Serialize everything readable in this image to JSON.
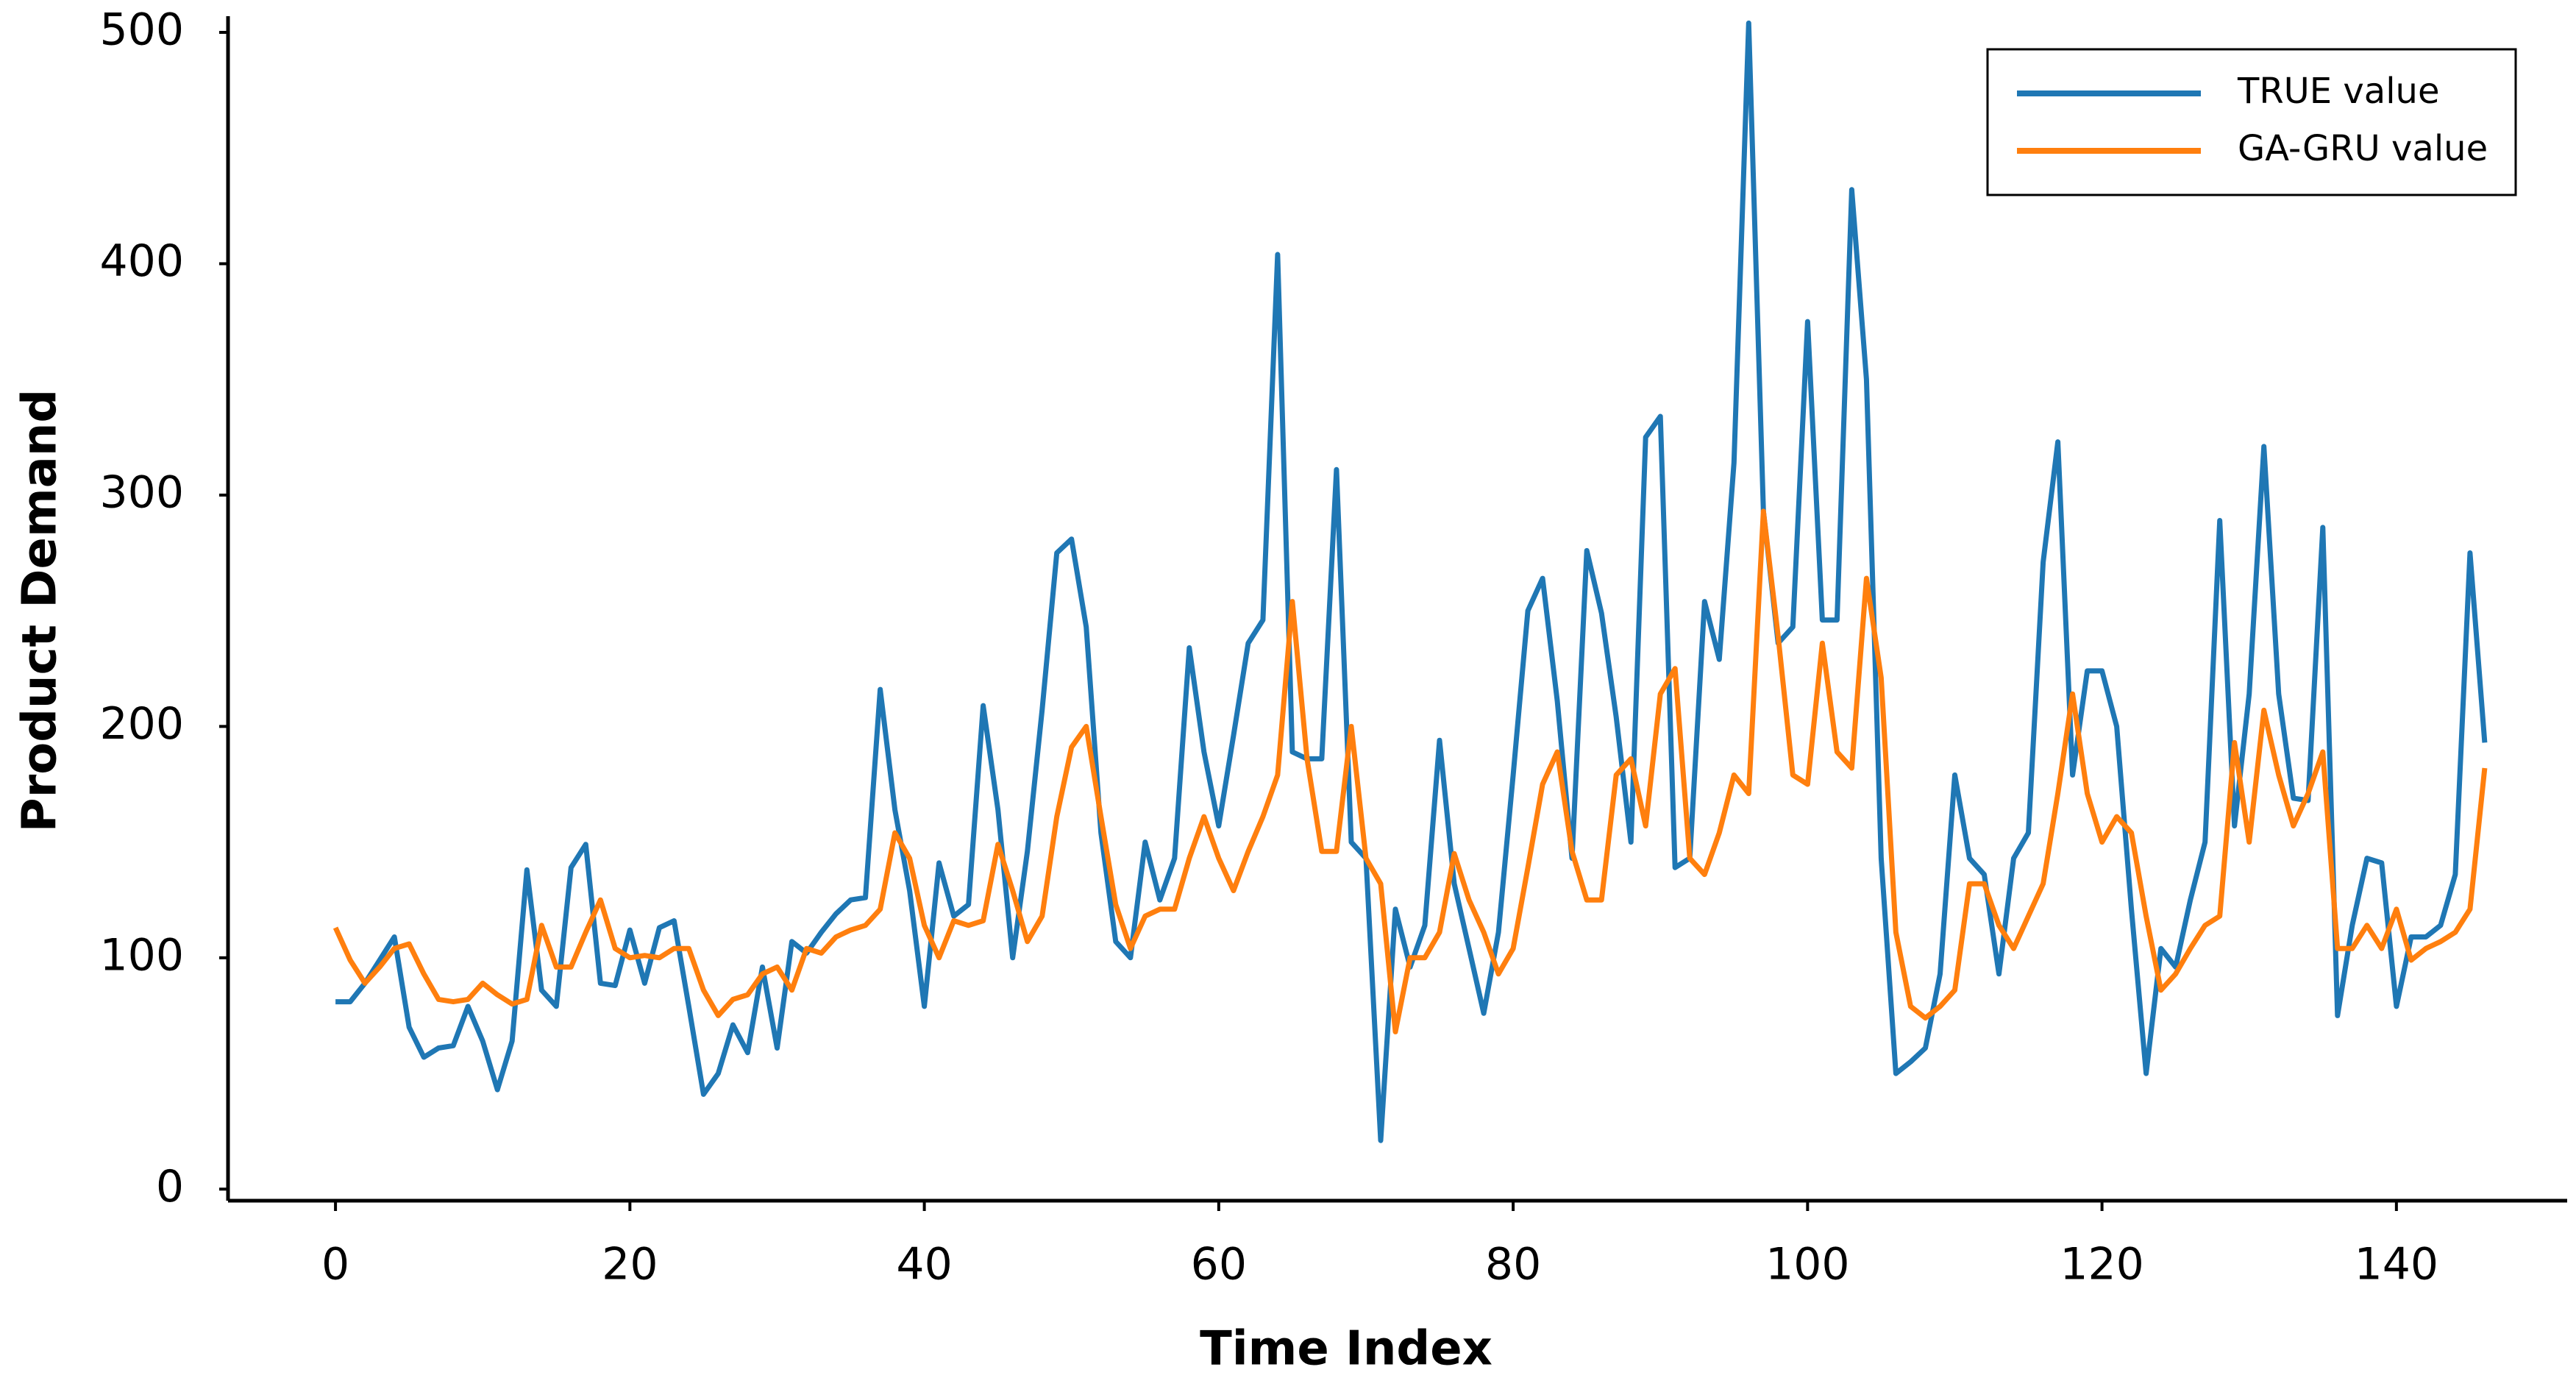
{
  "chart_data": {
    "type": "line",
    "xlabel": "Time Index",
    "ylabel": "Product Demand",
    "xlim": [
      -7.3,
      151.6
    ],
    "ylim": [
      -5,
      507
    ],
    "xticks": [
      0,
      20,
      40,
      60,
      80,
      100,
      120,
      140
    ],
    "yticks": [
      0,
      100,
      200,
      300,
      400,
      500
    ],
    "legend": "upper right",
    "grid": false,
    "x": [
      0,
      1,
      2,
      3,
      4,
      5,
      6,
      7,
      8,
      9,
      10,
      11,
      12,
      13,
      14,
      15,
      16,
      17,
      18,
      19,
      20,
      21,
      22,
      23,
      24,
      25,
      26,
      27,
      28,
      29,
      30,
      31,
      32,
      33,
      34,
      35,
      36,
      37,
      38,
      39,
      40,
      41,
      42,
      43,
      44,
      45,
      46,
      47,
      48,
      49,
      50,
      51,
      52,
      53,
      54,
      55,
      56,
      57,
      58,
      59,
      60,
      61,
      62,
      63,
      64,
      65,
      66,
      67,
      68,
      69,
      70,
      71,
      72,
      73,
      74,
      75,
      76,
      77,
      78,
      79,
      80,
      81,
      82,
      83,
      84,
      85,
      86,
      87,
      88,
      89,
      90,
      91,
      92,
      93,
      94,
      95,
      96,
      97,
      98,
      99,
      100,
      101,
      102,
      103,
      104,
      105,
      106,
      107,
      108,
      109,
      110,
      111,
      112,
      113,
      114,
      115,
      116,
      117,
      118,
      119,
      120,
      121,
      122,
      123,
      124,
      125,
      126,
      127,
      128,
      129,
      130,
      131,
      132,
      133,
      134,
      135,
      136,
      137,
      138,
      139,
      140,
      141,
      142,
      143,
      144,
      145,
      146
    ],
    "series": [
      {
        "name": "TRUE value",
        "color": "#1f77b4",
        "values": [
          81,
          81,
          89,
          99,
          109,
          70,
          57,
          61,
          62,
          79,
          64,
          43,
          64,
          138,
          86,
          79,
          139,
          149,
          89,
          88,
          112,
          89,
          113,
          116,
          79,
          41,
          50,
          71,
          59,
          96,
          61,
          107,
          102,
          111,
          119,
          125,
          126,
          216,
          164,
          129,
          79,
          141,
          118,
          123,
          209,
          164,
          100,
          146,
          207,
          275,
          281,
          243,
          154,
          107,
          100,
          150,
          125,
          143,
          234,
          189,
          157,
          196,
          236,
          246,
          404,
          189,
          186,
          186,
          311,
          150,
          143,
          21,
          121,
          96,
          114,
          194,
          132,
          104,
          76,
          111,
          179,
          250,
          264,
          211,
          143,
          276,
          249,
          204,
          150,
          325,
          334,
          139,
          143,
          254,
          229,
          314,
          504,
          293,
          236,
          243,
          375,
          246,
          246,
          432,
          350,
          143,
          50,
          55,
          61,
          93,
          179,
          143,
          136,
          93,
          143,
          154,
          271,
          323,
          179,
          224,
          224,
          200,
          121,
          50,
          104,
          96,
          125,
          150,
          289,
          157,
          214,
          321,
          214,
          169,
          168,
          286,
          75,
          114,
          143,
          141,
          79,
          109,
          109,
          114,
          136,
          275,
          193
        ]
      },
      {
        "name": "GA-GRU value",
        "color": "#ff7f0e",
        "values": [
          113,
          99,
          89,
          96,
          104,
          106,
          93,
          82,
          81,
          82,
          89,
          84,
          80,
          82,
          114,
          96,
          96,
          111,
          125,
          104,
          100,
          101,
          100,
          104,
          104,
          86,
          75,
          82,
          84,
          93,
          96,
          86,
          104,
          102,
          109,
          112,
          114,
          121,
          154,
          143,
          114,
          100,
          116,
          114,
          116,
          149,
          129,
          107,
          118,
          161,
          191,
          200,
          161,
          123,
          104,
          118,
          121,
          121,
          143,
          161,
          143,
          129,
          146,
          161,
          179,
          254,
          186,
          146,
          146,
          200,
          143,
          132,
          68,
          100,
          100,
          111,
          145,
          125,
          111,
          93,
          104,
          139,
          175,
          189,
          146,
          125,
          125,
          179,
          186,
          157,
          214,
          225,
          143,
          136,
          154,
          179,
          171,
          293,
          239,
          179,
          175,
          236,
          189,
          182,
          264,
          221,
          111,
          79,
          74,
          79,
          86,
          132,
          132,
          114,
          104,
          118,
          132,
          171,
          214,
          171,
          150,
          161,
          154,
          118,
          86,
          93,
          104,
          114,
          118,
          193,
          150,
          207,
          179,
          157,
          171,
          189,
          104,
          104,
          114,
          104,
          121,
          99,
          104,
          107,
          111,
          121,
          182
        ]
      }
    ]
  }
}
